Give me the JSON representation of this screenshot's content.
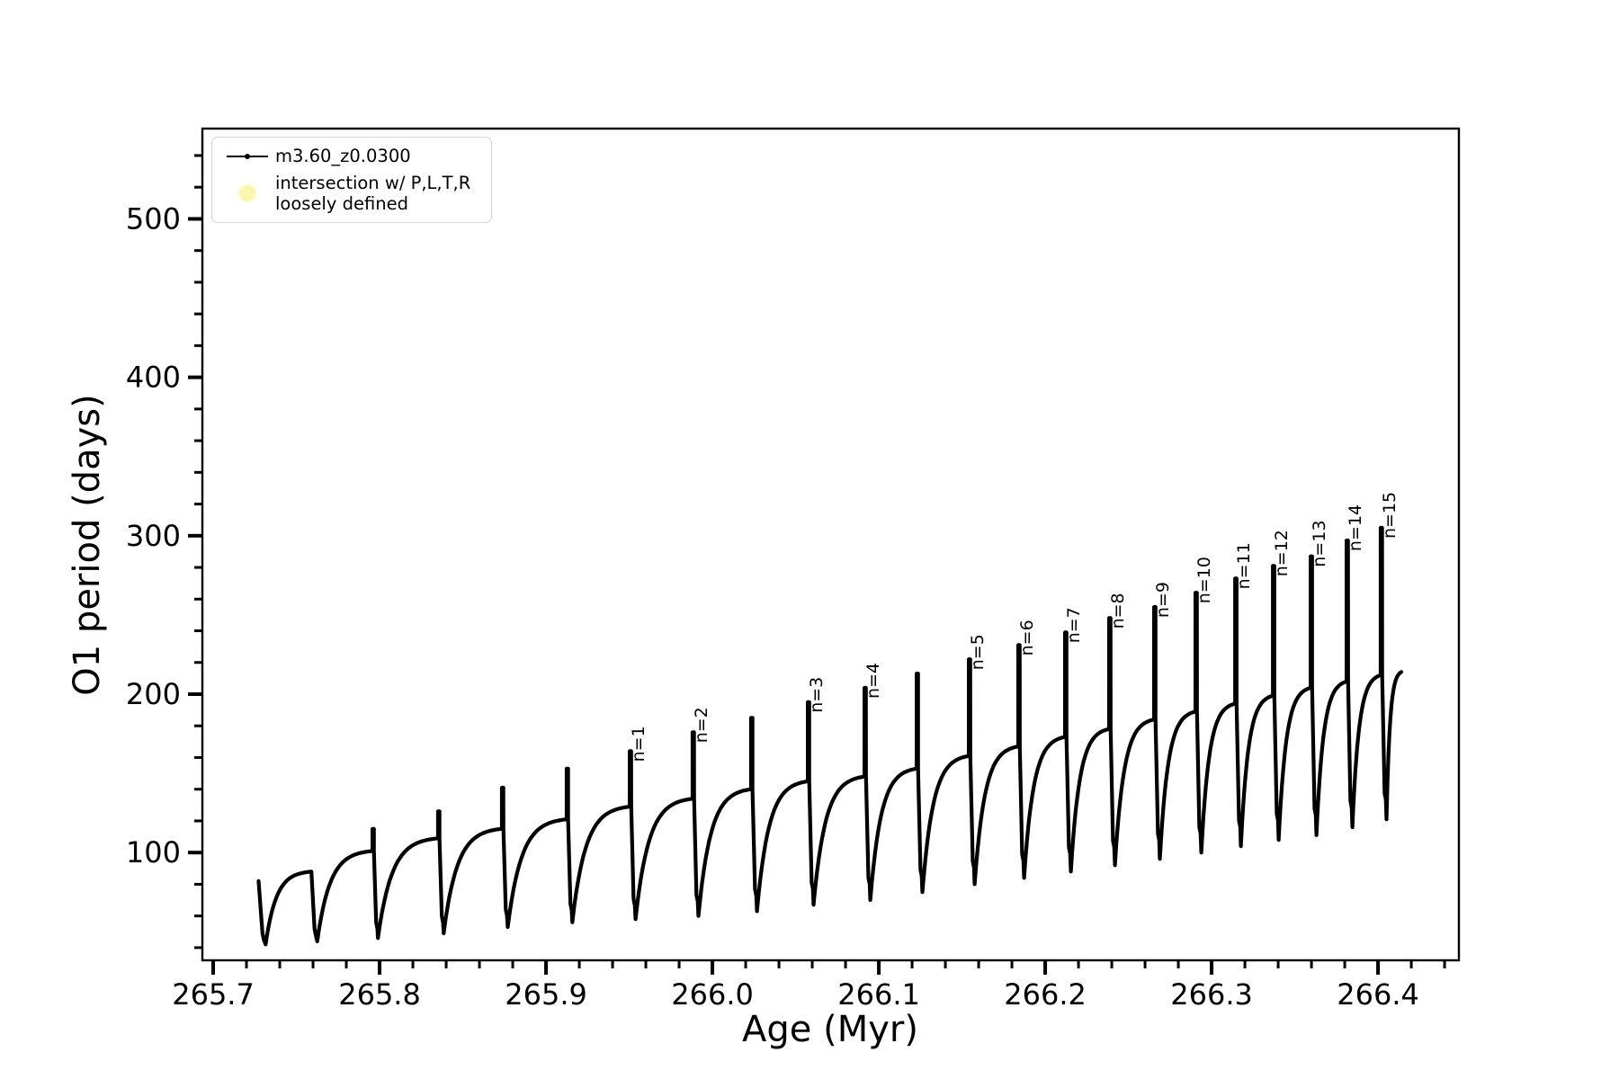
{
  "chart_data": {
    "type": "line",
    "title": "",
    "xlabel": "Age (Myr)",
    "ylabel": "O1 period (days)",
    "xlim": [
      265.6935,
      266.4486
    ],
    "ylim": [
      32,
      557
    ],
    "grid": false,
    "line_color": "#000000",
    "xticks": [
      265.7,
      265.8,
      265.9,
      266.0,
      266.1,
      266.2,
      266.3,
      266.4
    ],
    "xtick_labels": [
      "265.7",
      "265.8",
      "265.9",
      "266.0",
      "266.1",
      "266.2",
      "266.3",
      "266.4"
    ],
    "x_minor_step": 0.02,
    "yticks": [
      100,
      200,
      300,
      400,
      500
    ],
    "ytick_labels": [
      "100",
      "200",
      "300",
      "400",
      "500"
    ],
    "y_minor_step": 20,
    "legend": {
      "position": "upper left",
      "entries": [
        {
          "type": "line",
          "label": "m3.60_z0.0300",
          "color": "#000000"
        },
        {
          "type": "marker",
          "label_lines": [
            "intersection w/ P,L,T,R",
            "loosely defined"
          ],
          "color": "#f9f7ae"
        }
      ]
    },
    "annotation_labels": [
      "n=1",
      "n=2",
      "n=3",
      "n=4",
      "n=5",
      "n=6",
      "n=7",
      "n=8",
      "n=9",
      "n=10",
      "n=11",
      "n=12",
      "n=13",
      "n=14",
      "n=15"
    ],
    "cycles": [
      {
        "min_x": 265.7273,
        "min_v": 82,
        "top_x": 265.7273,
        "top_v": 82,
        "spike_v": 82,
        "label": null
      },
      {
        "min_x": 265.7315,
        "min_v": 42,
        "top_x": 265.759,
        "top_v": 88,
        "spike_v": 88,
        "label": null
      },
      {
        "min_x": 265.7625,
        "min_v": 44,
        "top_x": 265.7957,
        "top_v": 101,
        "spike_v": 115,
        "label": null
      },
      {
        "min_x": 265.799,
        "min_v": 46,
        "top_x": 265.8351,
        "top_v": 109,
        "spike_v": 126,
        "label": null
      },
      {
        "min_x": 265.8385,
        "min_v": 49,
        "top_x": 265.8735,
        "top_v": 115,
        "spike_v": 141,
        "label": null
      },
      {
        "min_x": 265.877,
        "min_v": 53,
        "top_x": 265.9124,
        "top_v": 121,
        "spike_v": 153,
        "label": null
      },
      {
        "min_x": 265.9158,
        "min_v": 56,
        "top_x": 265.9503,
        "top_v": 129,
        "spike_v": 164,
        "label": "n=1"
      },
      {
        "min_x": 265.9538,
        "min_v": 58,
        "top_x": 265.9881,
        "top_v": 134,
        "spike_v": 176,
        "label": "n=2"
      },
      {
        "min_x": 265.9916,
        "min_v": 60,
        "top_x": 266.0232,
        "top_v": 140,
        "spike_v": 185,
        "label": null
      },
      {
        "min_x": 266.0268,
        "min_v": 63,
        "top_x": 266.0573,
        "top_v": 145,
        "spike_v": 195,
        "label": "n=3"
      },
      {
        "min_x": 266.0608,
        "min_v": 67,
        "top_x": 266.0914,
        "top_v": 148,
        "spike_v": 204,
        "label": "n=4"
      },
      {
        "min_x": 266.0949,
        "min_v": 70,
        "top_x": 266.1227,
        "top_v": 153,
        "spike_v": 213,
        "label": null
      },
      {
        "min_x": 266.1262,
        "min_v": 75,
        "top_x": 266.1541,
        "top_v": 161,
        "spike_v": 222,
        "label": "n=5"
      },
      {
        "min_x": 266.1576,
        "min_v": 80,
        "top_x": 266.1838,
        "top_v": 167,
        "spike_v": 231,
        "label": "n=6"
      },
      {
        "min_x": 266.1873,
        "min_v": 84,
        "top_x": 266.2119,
        "top_v": 173,
        "spike_v": 239,
        "label": "n=7"
      },
      {
        "min_x": 266.2154,
        "min_v": 88,
        "top_x": 266.2384,
        "top_v": 178,
        "spike_v": 248,
        "label": "n=8"
      },
      {
        "min_x": 266.2419,
        "min_v": 92,
        "top_x": 266.2654,
        "top_v": 184,
        "spike_v": 255,
        "label": "n=9"
      },
      {
        "min_x": 266.2689,
        "min_v": 96,
        "top_x": 266.2903,
        "top_v": 189,
        "spike_v": 264,
        "label": "n=10"
      },
      {
        "min_x": 266.2938,
        "min_v": 100,
        "top_x": 266.3141,
        "top_v": 194,
        "spike_v": 273,
        "label": "n=11"
      },
      {
        "min_x": 266.3176,
        "min_v": 104,
        "top_x": 266.3368,
        "top_v": 199,
        "spike_v": 281,
        "label": "n=12"
      },
      {
        "min_x": 266.3403,
        "min_v": 108,
        "top_x": 266.3595,
        "top_v": 204,
        "spike_v": 287,
        "label": "n=13"
      },
      {
        "min_x": 266.363,
        "min_v": 111,
        "top_x": 266.3811,
        "top_v": 208,
        "spike_v": 297,
        "label": "n=14"
      },
      {
        "min_x": 266.3846,
        "min_v": 116,
        "top_x": 266.4016,
        "top_v": 212,
        "spike_v": 305,
        "label": "n=15"
      },
      {
        "min_x": 266.4051,
        "min_v": 121,
        "top_x": 266.414,
        "top_v": 214,
        "spike_v": 214,
        "label": null
      }
    ]
  }
}
